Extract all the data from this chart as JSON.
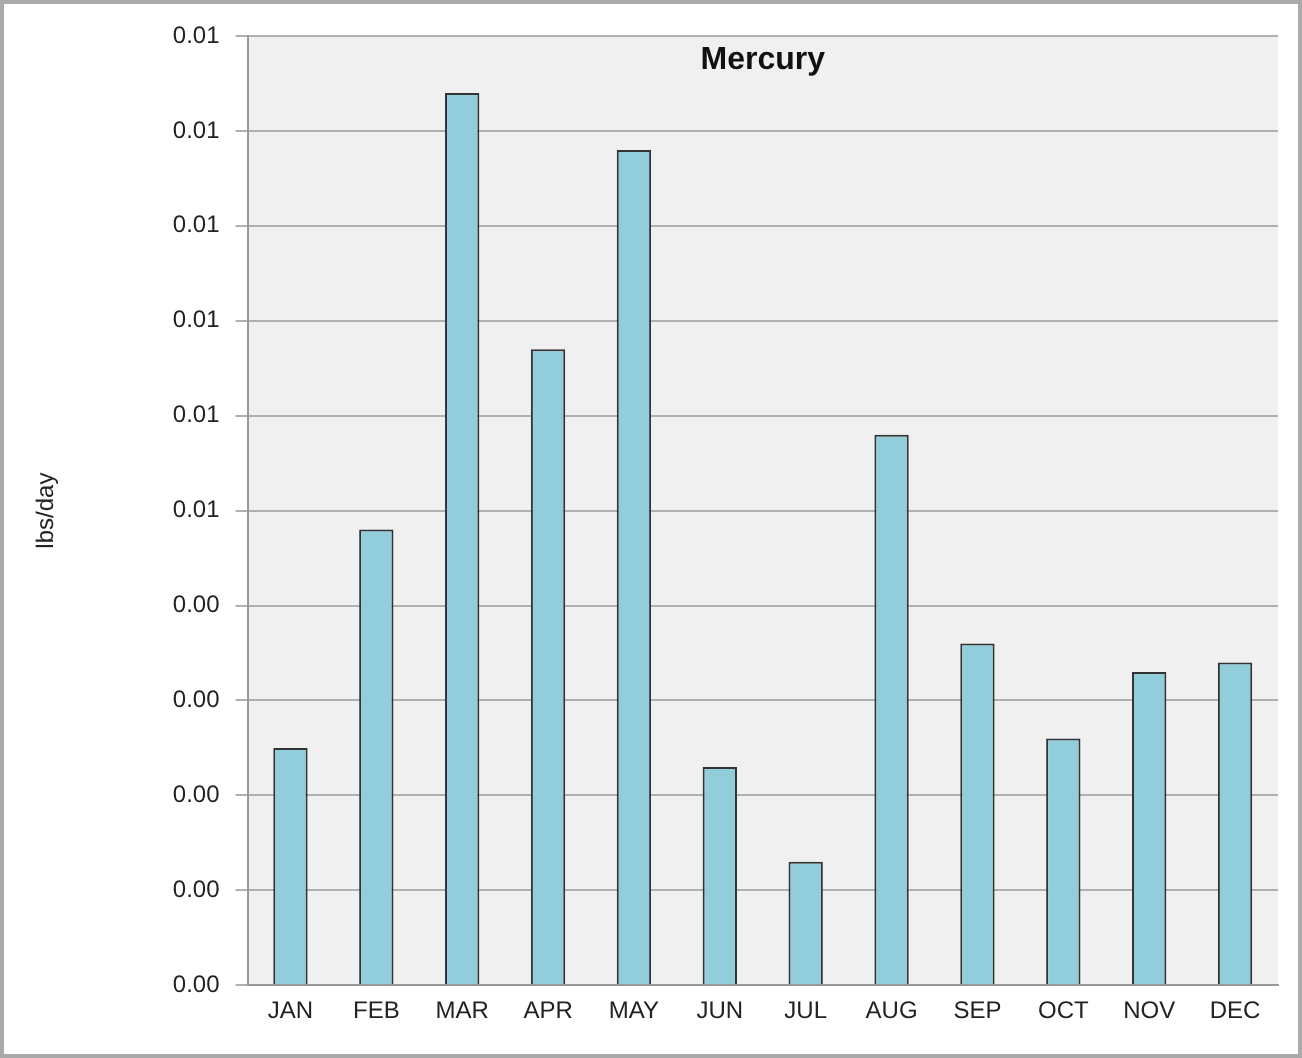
{
  "chart_data": {
    "type": "bar",
    "title": "Mercury",
    "ylabel": "lbs/day",
    "categories": [
      "JAN",
      "FEB",
      "MAR",
      "APR",
      "MAY",
      "JUN",
      "JUL",
      "AUG",
      "SEP",
      "OCT",
      "NOV",
      "DEC"
    ],
    "values": [
      0.0025,
      0.0048,
      0.0094,
      0.0067,
      0.0088,
      0.0023,
      0.0013,
      0.0058,
      0.0036,
      0.0026,
      0.0033,
      0.0034
    ],
    "color": "#92cddc",
    "ylim": [
      0,
      0.01
    ],
    "yticks": [
      {
        "value": 0,
        "label": "0.00"
      },
      {
        "value": 0.001,
        "label": "0.00"
      },
      {
        "value": 0.002,
        "label": "0.00"
      },
      {
        "value": 0.003,
        "label": "0.00"
      },
      {
        "value": 0.004,
        "label": "0.00"
      },
      {
        "value": 0.005,
        "label": "0.01"
      },
      {
        "value": 0.006,
        "label": "0.01"
      },
      {
        "value": 0.007,
        "label": "0.01"
      },
      {
        "value": 0.008,
        "label": "0.01"
      },
      {
        "value": 0.009,
        "label": "0.01"
      },
      {
        "value": 0.01,
        "label": "0.01"
      }
    ],
    "grid": "y",
    "legend": false
  }
}
